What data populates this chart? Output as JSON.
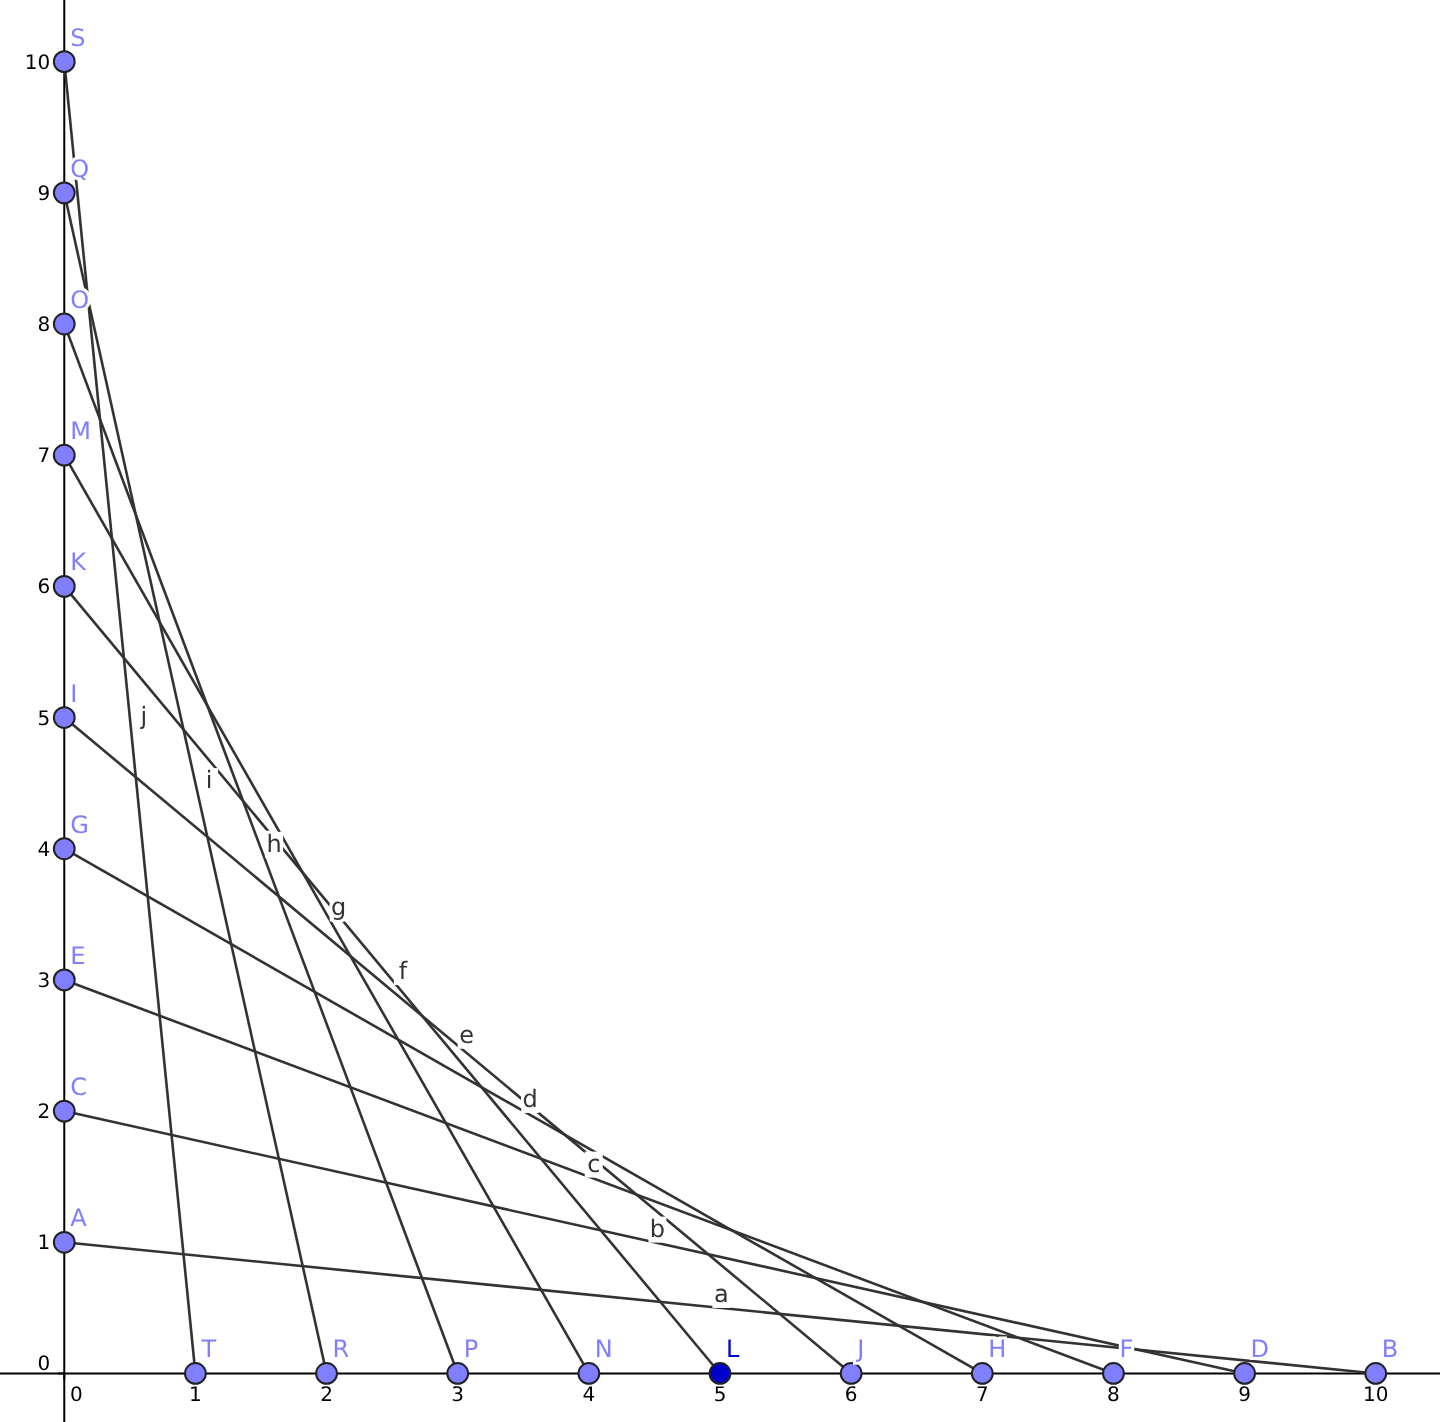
{
  "chart_data": {
    "type": "line",
    "xlim": [
      -0.49,
      10.49
    ],
    "ylim": [
      -0.37,
      10.47
    ],
    "xticks": [
      0,
      1,
      2,
      3,
      4,
      5,
      6,
      7,
      8,
      9,
      10
    ],
    "yticks": [
      0,
      1,
      2,
      3,
      4,
      5,
      6,
      7,
      8,
      9,
      10
    ],
    "grid": false,
    "marker": "none",
    "line_style": "solid",
    "series": [
      {
        "name": "a",
        "color": "#333333",
        "x": [
          0,
          10
        ],
        "values": [
          1,
          0
        ]
      },
      {
        "name": "b",
        "color": "#333333",
        "x": [
          0,
          9
        ],
        "values": [
          2,
          0
        ]
      },
      {
        "name": "c",
        "color": "#333333",
        "x": [
          0,
          8
        ],
        "values": [
          3,
          0
        ]
      },
      {
        "name": "d",
        "color": "#333333",
        "x": [
          0,
          7
        ],
        "values": [
          4,
          0
        ]
      },
      {
        "name": "e",
        "color": "#333333",
        "x": [
          0,
          6
        ],
        "values": [
          5,
          0
        ]
      },
      {
        "name": "f",
        "color": "#333333",
        "x": [
          0,
          5
        ],
        "values": [
          6,
          0
        ]
      },
      {
        "name": "g",
        "color": "#333333",
        "x": [
          0,
          4
        ],
        "values": [
          7,
          0
        ]
      },
      {
        "name": "h",
        "color": "#333333",
        "x": [
          0,
          3
        ],
        "values": [
          8,
          0
        ]
      },
      {
        "name": "i",
        "color": "#333333",
        "x": [
          0,
          2
        ],
        "values": [
          9,
          0
        ]
      },
      {
        "name": "j",
        "color": "#333333",
        "x": [
          0,
          1
        ],
        "values": [
          10,
          0
        ]
      },
      {
        "type": "scatter",
        "marker": "circle",
        "x": [
          0,
          10,
          0,
          9,
          0,
          8,
          0,
          7,
          0,
          6,
          0,
          5,
          0,
          4,
          0,
          3,
          0,
          2,
          0,
          1
        ],
        "values": [
          1,
          0,
          2,
          0,
          3,
          0,
          4,
          0,
          5,
          0,
          6,
          0,
          7,
          0,
          8,
          0,
          9,
          0,
          10,
          0
        ],
        "colors": [
          "#7f7fff",
          "#7f7fff",
          "#7f7fff",
          "#7f7fff",
          "#7f7fff",
          "#7f7fff",
          "#7f7fff",
          "#7f7fff",
          "#7f7fff",
          "#7f7fff",
          "#7f7fff",
          "#0000cc",
          "#7f7fff",
          "#7f7fff",
          "#7f7fff",
          "#7f7fff",
          "#7f7fff",
          "#7f7fff",
          "#7f7fff",
          "#7f7fff"
        ],
        "value_labels": [
          "A",
          "B",
          "C",
          "D",
          "E",
          "F",
          "G",
          "H",
          "I",
          "J",
          "K",
          "L",
          "M",
          "N",
          "O",
          "P",
          "Q",
          "R",
          "S",
          "T"
        ]
      }
    ]
  }
}
